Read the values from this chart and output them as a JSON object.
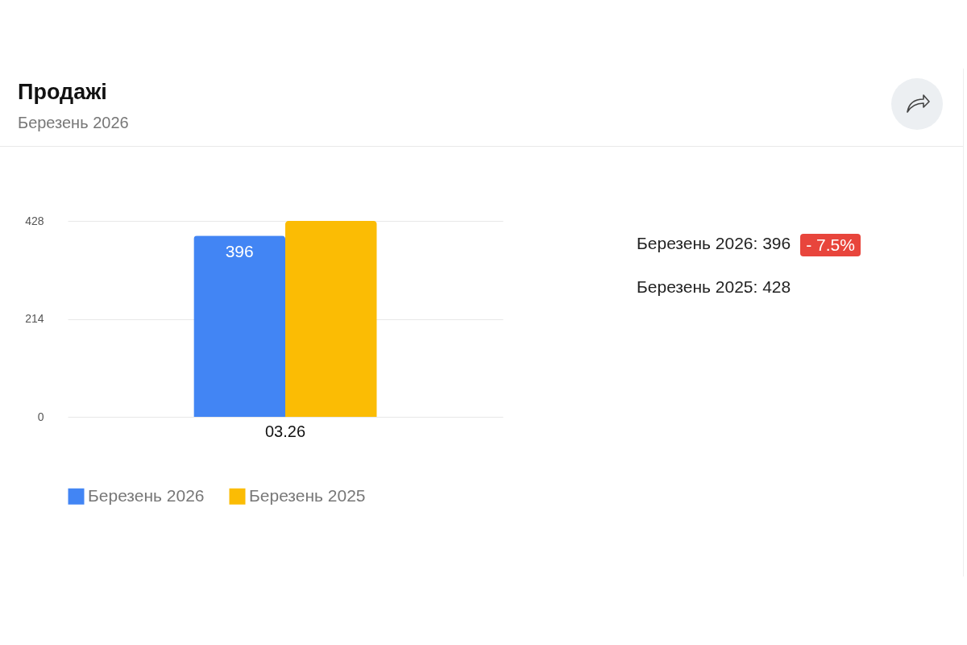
{
  "chart_data": {
    "type": "bar",
    "title": "Продажі",
    "subtitle": "Березень 2026",
    "categories": [
      "03.26"
    ],
    "series": [
      {
        "name": "Березень 2026",
        "color": "#4285f4",
        "values": [
          396
        ],
        "value_labels": [
          "396"
        ]
      },
      {
        "name": "Березень 2025",
        "color": "#fbbc04",
        "values": [
          428
        ],
        "value_labels": [
          null
        ]
      }
    ],
    "ylim": [
      0,
      428
    ],
    "yticks": [
      0,
      214,
      428
    ],
    "grid": "y",
    "legend": "bottom",
    "annotations": [
      "Березень 2026: 396",
      "- 7.5%",
      "Березень 2025: 428"
    ]
  }
}
